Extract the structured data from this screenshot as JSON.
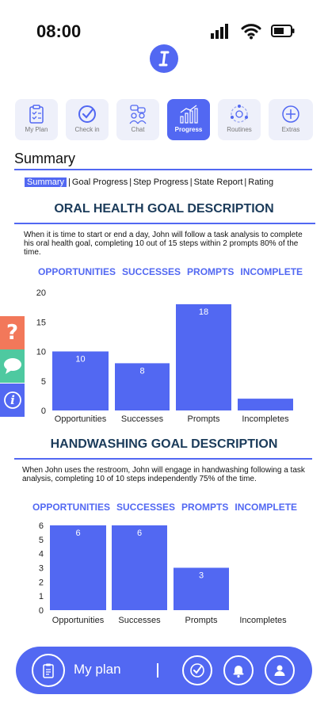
{
  "status": {
    "time": "08:00"
  },
  "nav": [
    {
      "label": "My Plan",
      "icon": "clipboard-icon",
      "active": false
    },
    {
      "label": "Check in",
      "icon": "check-circle-icon",
      "active": false
    },
    {
      "label": "Chat",
      "icon": "chat-people-icon",
      "active": false
    },
    {
      "label": "Progress",
      "icon": "bar-chart-icon",
      "active": true
    },
    {
      "label": "Routines",
      "icon": "routine-cycle-icon",
      "active": false
    },
    {
      "label": "Extras",
      "icon": "plus-circle-icon",
      "active": false
    }
  ],
  "summary_title": "Summary",
  "tabs": [
    "Summary",
    "Goal Progress",
    "Step Progress",
    "State Report",
    "Rating"
  ],
  "goals": [
    {
      "title": "ORAL HEALTH GOAL DESCRIPTION",
      "description": "When it is time to start or end a day, John will follow a task analysis to complete his oral health goal, completing 10 out of 15 steps within 2 prompts 80% of the time.",
      "legend": [
        "OPPORTUNITIES",
        "SUCCESSES",
        "PROMPTS",
        "INCOMPLETE"
      ]
    },
    {
      "title": "HANDWASHING GOAL DESCRIPTION",
      "description": "When John uses the restroom, John will engage in handwashing following a task analysis, completing 10 of 10 steps independently 75% of the time.",
      "legend": [
        "OPPORTUNITIES",
        "SUCCESSES",
        "PROMPTS",
        "INCOMPLETE"
      ]
    }
  ],
  "chart_data": [
    {
      "type": "bar",
      "categories": [
        "Opportunities",
        "Successes",
        "Prompts",
        "Incompletes"
      ],
      "values": [
        10,
        8,
        18,
        2
      ],
      "value_labels": [
        "10",
        "8",
        "18",
        ""
      ],
      "yticks": [
        "0",
        "5",
        "10",
        "15",
        "20"
      ],
      "ylim": [
        0,
        20
      ],
      "color": "#5268f2"
    },
    {
      "type": "bar",
      "categories": [
        "Opportunities",
        "Successes",
        "Prompts",
        "Incompletes"
      ],
      "values": [
        6,
        6,
        3,
        0
      ],
      "value_labels": [
        "6",
        "6",
        "3",
        ""
      ],
      "yticks": [
        "0",
        "1",
        "2",
        "3",
        "4",
        "5",
        "6"
      ],
      "ylim": [
        0,
        6
      ],
      "color": "#5268f2"
    }
  ],
  "side_buttons": [
    {
      "glyph": "?",
      "icon": "help-icon",
      "color": "#f2785a"
    },
    {
      "glyph": "",
      "icon": "chat-bubble-icon",
      "color": "#4ec9a0"
    },
    {
      "glyph": "i",
      "icon": "info-icon",
      "color": "#5268f2"
    }
  ],
  "bottom_bar": {
    "plan_label": "My plan",
    "icons": [
      "clipboard-icon",
      "check-circle-icon",
      "bell-icon",
      "user-icon"
    ]
  },
  "colors": {
    "accent": "#5268f2",
    "heading": "#1b3b5a"
  }
}
